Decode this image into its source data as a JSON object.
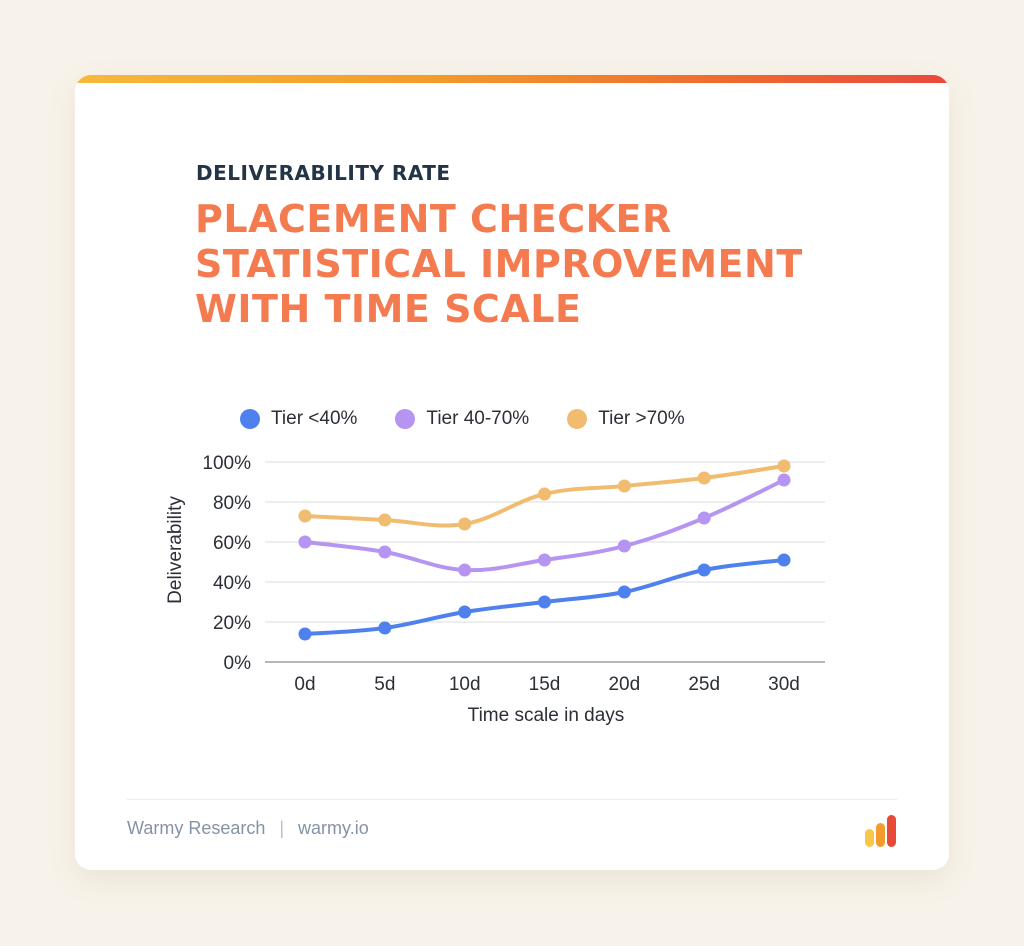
{
  "header": {
    "kicker": "DELIVERABILITY RATE",
    "title": "PLACEMENT CHECKER STATISTICAL IMPROVEMENT WITH TIME SCALE"
  },
  "chart_data": {
    "type": "line",
    "x": [
      "0d",
      "5d",
      "10d",
      "15d",
      "20d",
      "25d",
      "30d"
    ],
    "series": [
      {
        "name": "Tier <40%",
        "color": "#4f81ee",
        "values": [
          14,
          17,
          25,
          30,
          35,
          46,
          51
        ]
      },
      {
        "name": "Tier 40-70%",
        "color": "#b694f2",
        "values": [
          60,
          55,
          46,
          51,
          58,
          72,
          91
        ]
      },
      {
        "name": "Tier >70%",
        "color": "#f2bc70",
        "values": [
          73,
          71,
          69,
          84,
          88,
          92,
          98
        ]
      }
    ],
    "xlabel": "Time scale in days",
    "ylabel": "Deliverability",
    "ylim": [
      0,
      100
    ],
    "yticks": [
      "0%",
      "20%",
      "40%",
      "60%",
      "80%",
      "100%"
    ],
    "grid": true,
    "legend": "top"
  },
  "footer": {
    "source": "Warmy Research",
    "separator": "|",
    "site": "warmy.io"
  },
  "logo_colors": [
    "#f8c74a",
    "#f39c2b",
    "#e84a3a"
  ]
}
